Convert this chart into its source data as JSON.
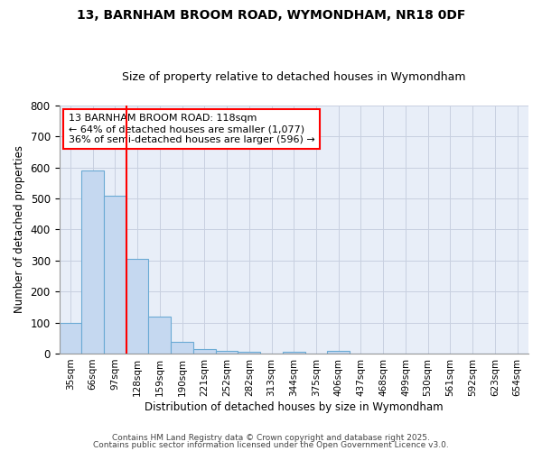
{
  "title1": "13, BARNHAM BROOM ROAD, WYMONDHAM, NR18 0DF",
  "title2": "Size of property relative to detached houses in Wymondham",
  "xlabel": "Distribution of detached houses by size in Wymondham",
  "ylabel": "Number of detached properties",
  "bar_labels": [
    "35sqm",
    "66sqm",
    "97sqm",
    "128sqm",
    "159sqm",
    "190sqm",
    "221sqm",
    "252sqm",
    "282sqm",
    "313sqm",
    "344sqm",
    "375sqm",
    "406sqm",
    "437sqm",
    "468sqm",
    "499sqm",
    "530sqm",
    "561sqm",
    "592sqm",
    "623sqm",
    "654sqm"
  ],
  "bar_values": [
    100,
    590,
    510,
    305,
    120,
    38,
    15,
    8,
    6,
    0,
    6,
    0,
    8,
    0,
    0,
    0,
    0,
    0,
    0,
    0,
    0
  ],
  "bar_color": "#c5d8f0",
  "bar_edge_color": "#6aaad4",
  "vline_color": "red",
  "vline_pos": 2.5,
  "annotation_title": "13 BARNHAM BROOM ROAD: 118sqm",
  "annotation_line2": "← 64% of detached houses are smaller (1,077)",
  "annotation_line3": "36% of semi-detached houses are larger (596) →",
  "annotation_box_color": "red",
  "ylim": [
    0,
    800
  ],
  "yticks": [
    0,
    100,
    200,
    300,
    400,
    500,
    600,
    700,
    800
  ],
  "plot_bg_color": "#e8eef8",
  "grid_color": "#c8d0e0",
  "footer1": "Contains HM Land Registry data © Crown copyright and database right 2025.",
  "footer2": "Contains public sector information licensed under the Open Government Licence v3.0.",
  "title1_fontsize": 10,
  "title2_fontsize": 9,
  "footer_fontsize": 6.5
}
